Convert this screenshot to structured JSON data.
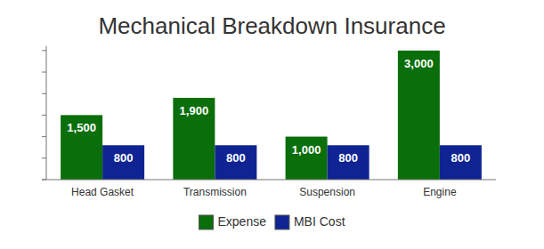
{
  "chart_data": {
    "type": "bar",
    "title": "Mechanical Breakdown Insurance",
    "categories": [
      "Head Gasket",
      "Transmission",
      "Suspension",
      "Engine"
    ],
    "series": [
      {
        "name": "Expense",
        "color": "#0a6e0a",
        "values": [
          1500,
          1900,
          1000,
          3000
        ],
        "value_labels": [
          "1,500",
          "1,900",
          "1,000",
          "3,000"
        ]
      },
      {
        "name": "MBI Cost",
        "color": "#0f2492",
        "values": [
          800,
          800,
          800,
          800
        ]
      }
    ],
    "ylim": [
      0,
      3100
    ],
    "yticks": [
      0,
      500,
      1000,
      1500,
      2000,
      2500,
      3000
    ],
    "grid": false,
    "legend": "bottom",
    "data_labels": true,
    "tick_labels": "x"
  }
}
